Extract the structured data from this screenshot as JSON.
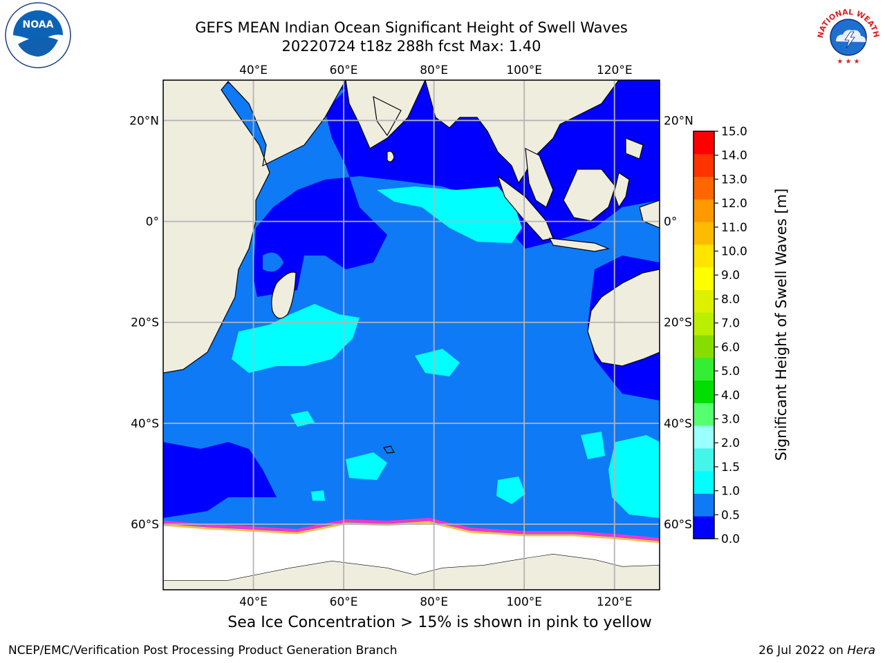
{
  "title": {
    "line1": "GEFS MEAN Indian Ocean Significant Height of Swell Waves",
    "line2": "20220724 t18z 288h fcst   Max: 1.40"
  },
  "map": {
    "longitude_ticks": [
      "40°E",
      "60°E",
      "80°E",
      "100°E",
      "120°E"
    ],
    "latitude_ticks": [
      "20°N",
      "0°",
      "20°S",
      "40°S",
      "60°S"
    ],
    "extent": {
      "lon": [
        20,
        130
      ],
      "lat": [
        -73,
        28
      ]
    },
    "colors": {
      "land": "#efedde",
      "ice": "#ffffff",
      "grid": "#b4b4b4",
      "coast": "#000000"
    }
  },
  "colorbar": {
    "title": "Significant Height of Swell Waves [m]",
    "labels": [
      "0.0",
      "0.5",
      "1.0",
      "1.5",
      "2.0",
      "3.0",
      "4.0",
      "5.0",
      "6.0",
      "7.0",
      "8.0",
      "9.0",
      "10.0",
      "11.0",
      "12.0",
      "13.0",
      "14.0",
      "15.0"
    ],
    "colors": [
      "#0000ff",
      "#0f7af5",
      "#00ffff",
      "#44f5ea",
      "#99ffff",
      "#55ff70",
      "#00dd00",
      "#33ee33",
      "#88dd00",
      "#bbee00",
      "#ddf000",
      "#ffff00",
      "#ffe400",
      "#ffbb00",
      "#ff9900",
      "#ff6600",
      "#ff3300",
      "#ff0000"
    ]
  },
  "caption": "Sea Ice Concentration > 15% is shown in pink to yellow",
  "footer": {
    "left": "NCEP/EMC/Verification Post Processing Product Generation Branch",
    "date": "26 Jul 2022 on ",
    "host": "Hera"
  },
  "logos": {
    "noaa_text": "NOAA",
    "nws_text": "NATIONAL WEATHER SERVICE"
  }
}
